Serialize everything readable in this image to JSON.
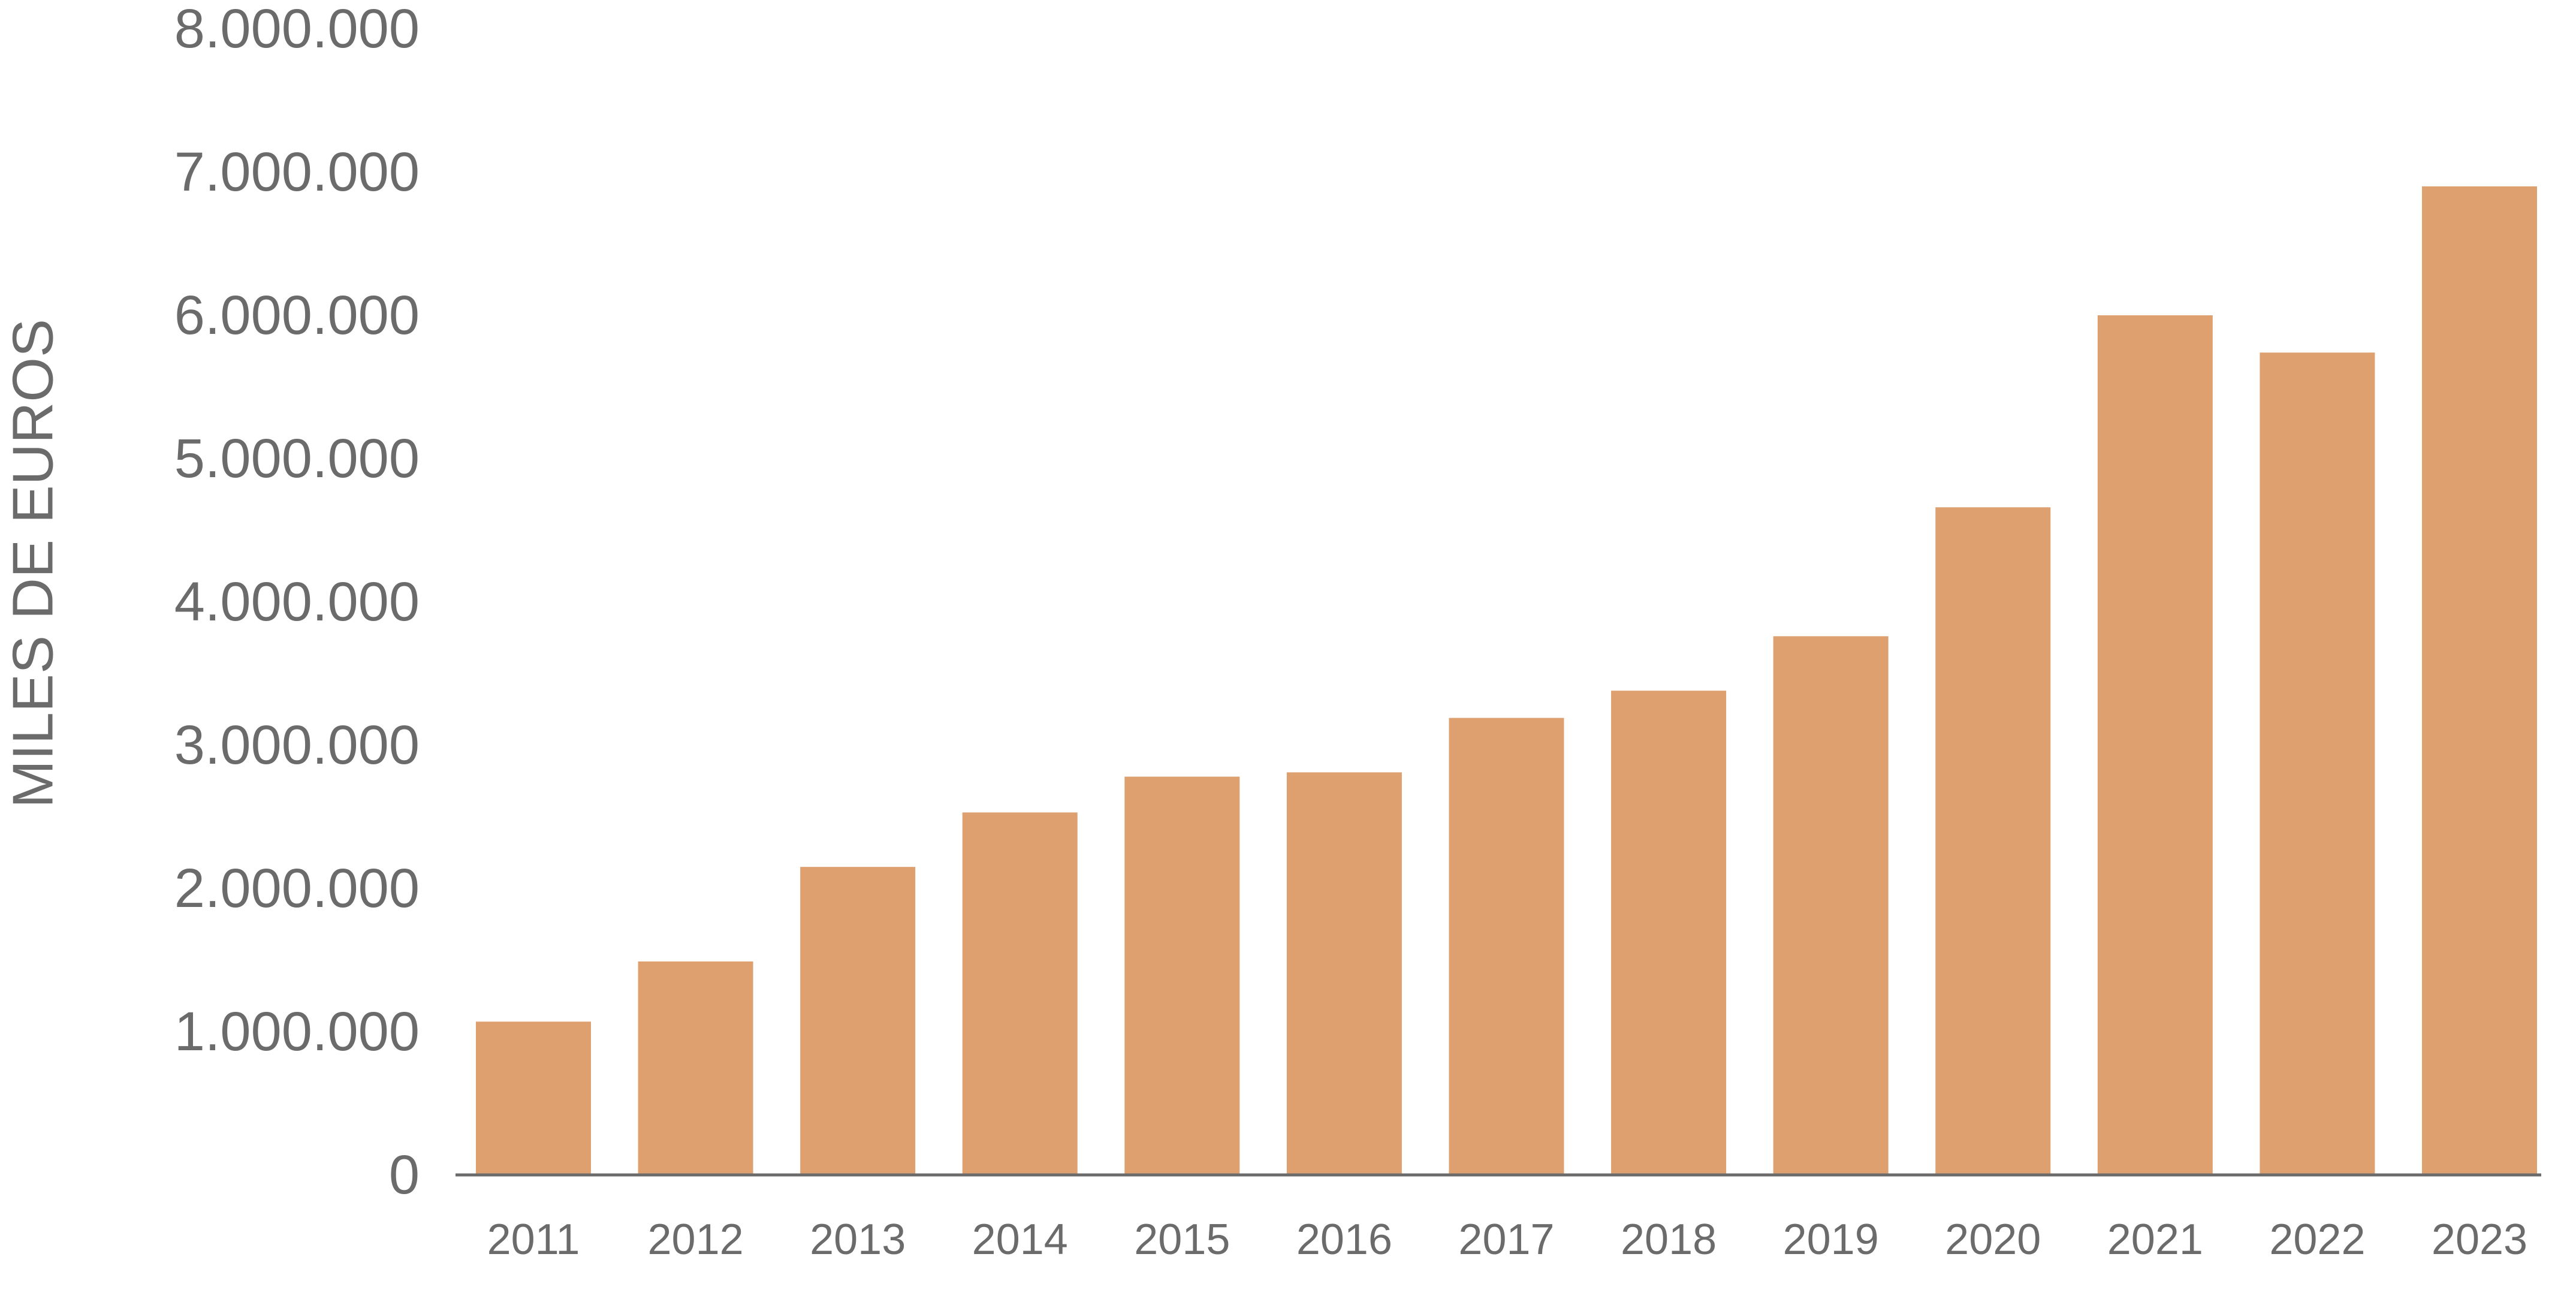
{
  "chart_data": {
    "type": "bar",
    "title": "",
    "xlabel": "",
    "ylabel": "MILES DE EUROS",
    "categories": [
      "2011",
      "2012",
      "2013",
      "2014",
      "2015",
      "2016",
      "2017",
      "2018",
      "2019",
      "2020",
      "2021",
      "2022",
      "2023"
    ],
    "values": [
      1070000,
      1490000,
      2150000,
      2530000,
      2780000,
      2810000,
      3190000,
      3380000,
      3760000,
      4660000,
      6000000,
      5740000,
      6900000
    ],
    "ylim": [
      0,
      8000000
    ],
    "yticks": [
      0,
      1000000,
      2000000,
      3000000,
      4000000,
      5000000,
      6000000,
      7000000,
      8000000
    ],
    "ytick_labels": [
      "0",
      "1.000.000",
      "2.000.000",
      "3.000.000",
      "4.000.000",
      "5.000.000",
      "6.000.000",
      "7.000.000",
      "8.000.000"
    ],
    "grid": false,
    "legend": "none",
    "colors": {
      "bar": "#DFA070",
      "axis": "#6b6b6b",
      "text": "#6b6b6b"
    }
  }
}
